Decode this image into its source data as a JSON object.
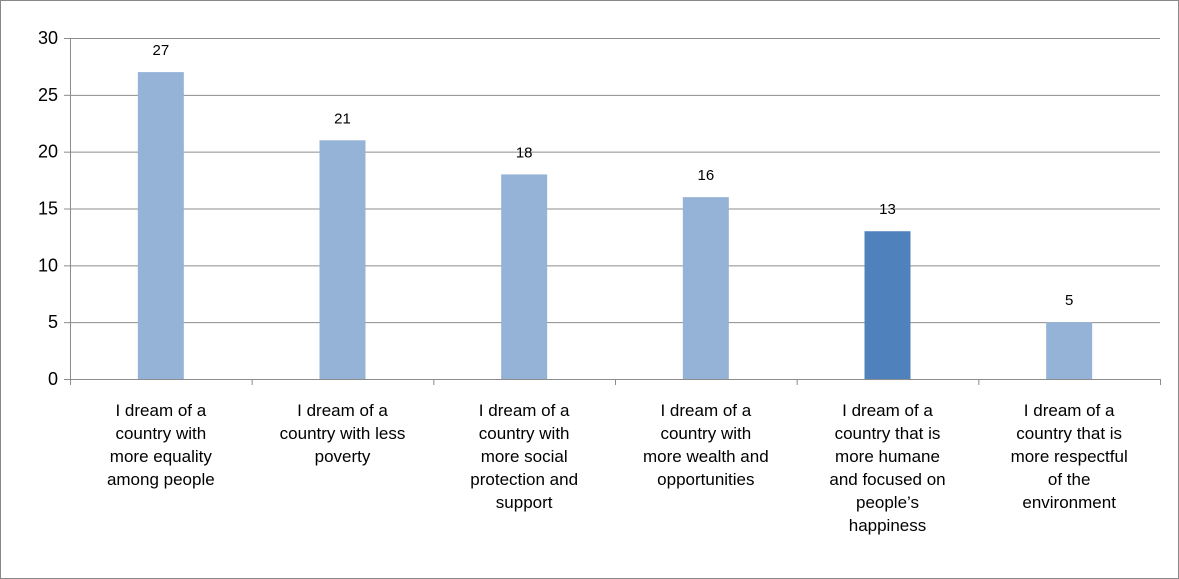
{
  "chart_data": {
    "type": "bar",
    "categories": [
      "I dream of a country with more equality among people",
      "I dream of a country with less poverty",
      "I dream of a country with more social protection and support",
      "I dream of a country with more wealth and opportunities",
      "I dream of a country that is more humane and focused on people’s happiness",
      "I dream of a country that is more respectful of the environment"
    ],
    "category_lines": [
      [
        "I dream of a",
        "country with",
        "more equality",
        "among people"
      ],
      [
        "I dream of a",
        "country with less",
        "poverty"
      ],
      [
        "I dream of a",
        "country with",
        "more social",
        "protection and",
        "support"
      ],
      [
        "I dream of a",
        "country with",
        "more wealth and",
        "opportunities"
      ],
      [
        "I dream of a",
        "country that is",
        "more humane",
        "and focused on",
        "people’s",
        "happiness"
      ],
      [
        "I dream of a",
        "country that is",
        "more respectful",
        "of the",
        "environment"
      ]
    ],
    "values": [
      27,
      21,
      18,
      16,
      13,
      5
    ],
    "data_labels": [
      "27",
      "21",
      "18",
      "16",
      "13",
      "5"
    ],
    "ylim": [
      0,
      30
    ],
    "yticks": [
      0,
      5,
      10,
      15,
      20,
      25,
      30
    ],
    "ytick_labels": [
      "0",
      "5",
      "10",
      "15",
      "20",
      "25",
      "30"
    ],
    "grid": true,
    "legend": "none",
    "title": "",
    "xlabel": "",
    "ylabel": "",
    "bar_color": "#95b3d7",
    "highlight_color": "#4f81bd",
    "highlight_index": 4,
    "axis_color": "#8c8c8c"
  }
}
